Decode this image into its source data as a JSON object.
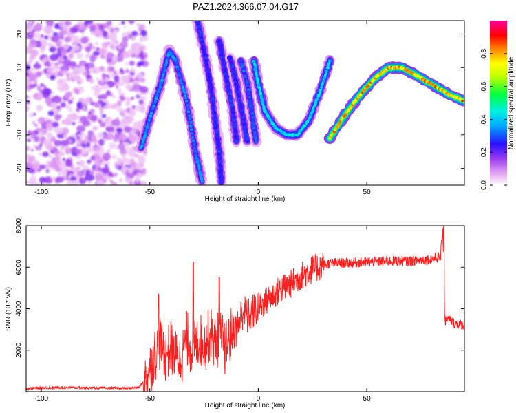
{
  "title": "PAZ1.2024.366.07.04.G17",
  "chart_data": [
    {
      "type": "heatmap",
      "xlabel": "Height of straight line (km)",
      "ylabel": "Frequency (Hz)",
      "xlim": [
        -107,
        95
      ],
      "ylim": [
        -25,
        24
      ],
      "xticks": [
        -100,
        -50,
        0,
        50
      ],
      "yticks": [
        -20,
        -10,
        0,
        10,
        20
      ],
      "colorbar": {
        "label": "Normalized spectral amplitude",
        "ticks": [
          "0.0",
          "0.2",
          "0.4",
          "0.6",
          "0.8"
        ],
        "range": [
          0,
          1
        ],
        "colors": [
          "#ffffff",
          "#e08cf0",
          "#9a3cf0",
          "#2a10ff",
          "#00e8ff",
          "#00ff40",
          "#ffff00",
          "#ff8000",
          "#ff0000",
          "#ff00a0"
        ]
      },
      "ridge": {
        "description_points": [
          {
            "x": -54,
            "y": -14
          },
          {
            "x": -50,
            "y": -5
          },
          {
            "x": -45,
            "y": 5
          },
          {
            "x": -41,
            "y": 15
          },
          {
            "x": -38,
            "y": 12
          },
          {
            "x": -33,
            "y": 0
          },
          {
            "x": -29,
            "y": -15
          },
          {
            "x": -26,
            "y": -24
          }
        ],
        "segments": [
          {
            "points": [
              [
                -28,
                24
              ],
              [
                -25,
                15
              ],
              [
                -22,
                5
              ],
              [
                -20,
                -5
              ],
              [
                -18,
                -15
              ],
              [
                -17,
                -24
              ]
            ],
            "amp": 0.25
          },
          {
            "points": [
              [
                -18,
                18
              ],
              [
                -15,
                8
              ],
              [
                -12,
                -2
              ],
              [
                -10,
                -12
              ]
            ],
            "amp": 0.25
          },
          {
            "points": [
              [
                -13,
                13
              ],
              [
                -10,
                5
              ],
              [
                -7,
                -5
              ],
              [
                -5,
                -12
              ]
            ],
            "amp": 0.25
          },
          {
            "points": [
              [
                -8,
                12
              ],
              [
                -5,
                5
              ],
              [
                -3,
                -3
              ],
              [
                -1,
                -12
              ]
            ],
            "amp": 0.28
          },
          {
            "points": [
              [
                -2,
                12
              ],
              [
                0,
                5
              ],
              [
                3,
                -3
              ],
              [
                8,
                -8
              ],
              [
                13,
                -10
              ],
              [
                18,
                -10
              ],
              [
                23,
                -6
              ],
              [
                28,
                2
              ],
              [
                33,
                12
              ]
            ],
            "amp": 0.4
          },
          {
            "points": [
              [
                33,
                -11
              ],
              [
                40,
                -4
              ],
              [
                47,
                2
              ],
              [
                54,
                7
              ],
              [
                60,
                10
              ],
              [
                66,
                10
              ],
              [
                72,
                8
              ],
              [
                80,
                5
              ],
              [
                88,
                2
              ],
              [
                95,
                0
              ]
            ],
            "amp": 0.75
          }
        ]
      }
    },
    {
      "type": "line",
      "xlabel": "Height of straight line (km)",
      "ylabel": "SNR (10 * v/v)",
      "xlim": [
        -107,
        95
      ],
      "ylim": [
        0,
        8000
      ],
      "xticks": [
        -100,
        -50,
        0,
        50
      ],
      "yticks": [
        2000,
        4000,
        6000,
        8000
      ],
      "series": [
        {
          "color": "#ff2020",
          "x": [
            -107,
            -100,
            -90,
            -80,
            -70,
            -60,
            -55,
            -52,
            -50,
            -47,
            -45,
            -43,
            -40,
            -37,
            -35,
            -33,
            -30,
            -27,
            -25,
            -22,
            -20,
            -17,
            -15,
            -12,
            -10,
            -7,
            -5,
            -2,
            0,
            3,
            6,
            10,
            15,
            20,
            25,
            30,
            33,
            40,
            50,
            60,
            70,
            80,
            84,
            85,
            86,
            88,
            90,
            95
          ],
          "y": [
            150,
            180,
            200,
            180,
            170,
            160,
            200,
            600,
            1200,
            2000,
            2400,
            1800,
            2100,
            1500,
            1800,
            2600,
            2000,
            2500,
            2300,
            2800,
            2400,
            2600,
            2000,
            2900,
            3000,
            3900,
            3600,
            3900,
            4100,
            4300,
            4600,
            4900,
            5200,
            5600,
            5900,
            6100,
            6200,
            6200,
            6250,
            6300,
            6300,
            6400,
            6500,
            8000,
            3400,
            3500,
            3300,
            3200
          ]
        }
      ]
    }
  ]
}
